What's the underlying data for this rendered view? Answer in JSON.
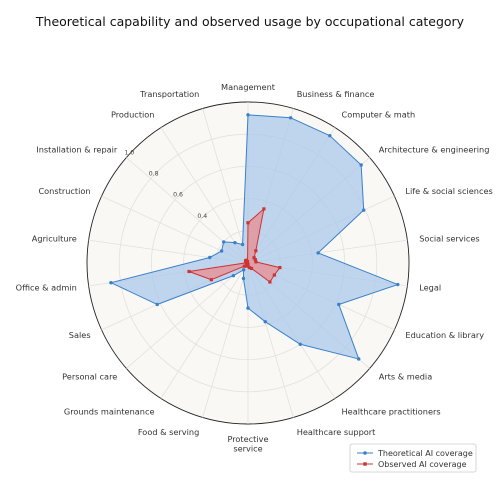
{
  "chart_data": {
    "type": "radar",
    "title": "Theoretical capability and observed usage by occupational category",
    "categories": [
      "Management",
      "Business & finance",
      "Computer & math",
      "Architecture & engineering",
      "Life & social sciences",
      "Social services",
      "Legal",
      "Education & library",
      "Arts & media",
      "Healthcare practitioners",
      "Healthcare support",
      "Protective service",
      "Food & serving",
      "Grounds maintenance",
      "Personal care",
      "Sales",
      "Office & admin",
      "Agriculture",
      "Construction",
      "Installation & repair",
      "Production",
      "Transportation"
    ],
    "category_labels": [
      [
        "Management"
      ],
      [
        "Business & finance"
      ],
      [
        "Computer & math"
      ],
      [
        "Architecture & engineering"
      ],
      [
        "Life & social sciences"
      ],
      [
        "Social services"
      ],
      [
        "Legal"
      ],
      [
        "Education & library"
      ],
      [
        "Arts & media"
      ],
      [
        "Healthcare practitioners"
      ],
      [
        "Healthcare support"
      ],
      [
        "Protective",
        "service"
      ],
      [
        "Food & serving"
      ],
      [
        "Grounds maintenance"
      ],
      [
        "Personal care"
      ],
      [
        "Sales"
      ],
      [
        "Office & admin"
      ],
      [
        "Agriculture"
      ],
      [
        "Construction"
      ],
      [
        "Installation & repair"
      ],
      [
        "Production"
      ],
      [
        "Transportation"
      ]
    ],
    "series": [
      {
        "name": "Theoretical AI coverage",
        "color": "#3a80c9",
        "fill": "#a8c8ea",
        "values": [
          0.92,
          0.94,
          0.94,
          0.93,
          0.79,
          0.44,
          0.94,
          0.62,
          0.91,
          0.6,
          0.38,
          0.28,
          0.1,
          0.05,
          0.12,
          0.62,
          0.86,
          0.24,
          0.18,
          0.2,
          0.15,
          0.12
        ]
      },
      {
        "name": "Observed AI coverage",
        "color": "#cc3333",
        "fill": "#ea8a8f",
        "values": [
          0.25,
          0.35,
          0.09,
          0.05,
          0.05,
          0.05,
          0.2,
          0.18,
          0.18,
          0.04,
          0.03,
          0.01,
          0.02,
          0.01,
          0.03,
          0.25,
          0.37,
          0.01,
          0.01,
          0.02,
          0.02,
          0.01
        ]
      }
    ],
    "radial_range": [
      0,
      1
    ],
    "radial_ticks": [
      "0.4",
      "0.6",
      "0.8",
      "1.0"
    ],
    "grid": true,
    "legend_position": "bottom-right"
  }
}
